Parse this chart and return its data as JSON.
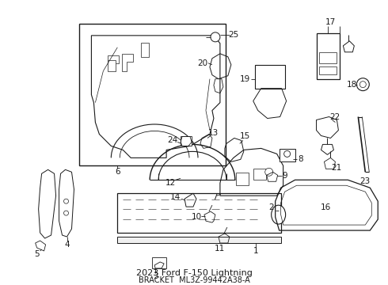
{
  "title": "2023 Ford F-150 Lightning",
  "subtitle": "BRACKET",
  "part_number": "ML3Z-99442A38-A",
  "bg_color": "#ffffff",
  "line_color": "#1a1a1a",
  "label_fontsize": 7.5,
  "fig_width": 4.9,
  "fig_height": 3.6,
  "dpi": 100
}
